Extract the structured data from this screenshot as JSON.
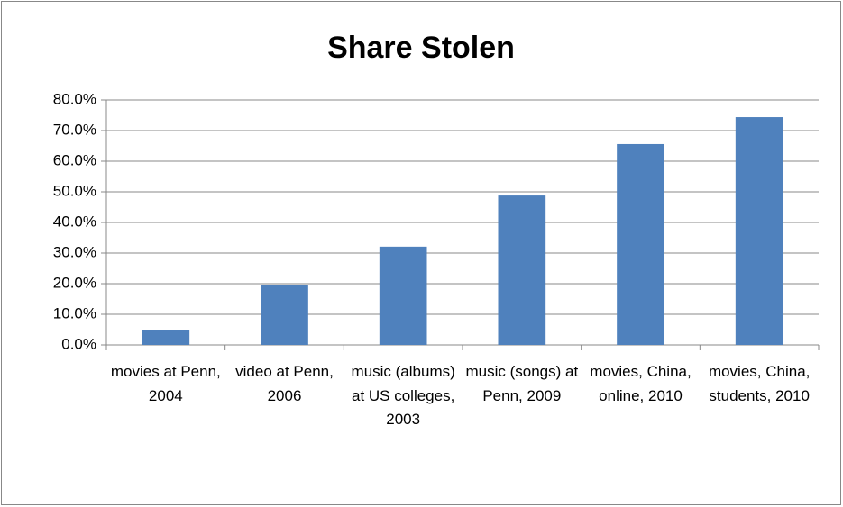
{
  "chart_data": {
    "type": "bar",
    "title": "Share Stolen",
    "categories": [
      "movies at Penn, 2004",
      "video at Penn, 2006",
      "music (albums) at US colleges, 2003",
      "music (songs) at Penn, 2009",
      "movies, China, online, 2010",
      "movies, China, students, 2010"
    ],
    "values": [
      5.0,
      19.7,
      32.1,
      48.8,
      65.6,
      74.4
    ],
    "color": "#4f81bd",
    "ylim": [
      0,
      80
    ],
    "yticks": [
      {
        "value": 0,
        "label": "0.0%"
      },
      {
        "value": 10,
        "label": "10.0%"
      },
      {
        "value": 20,
        "label": "20.0%"
      },
      {
        "value": 30,
        "label": "30.0%"
      },
      {
        "value": 40,
        "label": "40.0%"
      },
      {
        "value": 50,
        "label": "50.0%"
      },
      {
        "value": 60,
        "label": "60.0%"
      },
      {
        "value": 70,
        "label": "70.0%"
      },
      {
        "value": 80,
        "label": "80.0%"
      }
    ],
    "grid": true
  }
}
